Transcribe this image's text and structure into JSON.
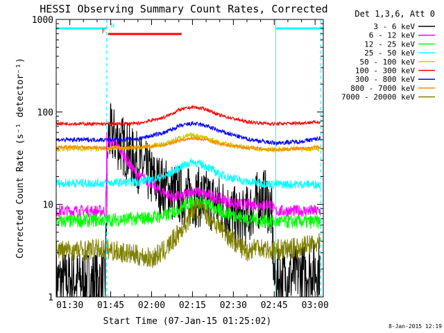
{
  "chart_data": {
    "type": "line",
    "title": "HESSI Observing Summary Count Rates, Corrected",
    "xlabel": "Start Time (07-Jan-15 01:25:02)",
    "ylabel": "Corrected Count Rate (s⁻¹ detector⁻¹)",
    "timestamp": "8-Jan-2015 12:19",
    "x_unit": "minutes after 01:25",
    "xlim": [
      0,
      98
    ],
    "ylim": [
      1,
      1000
    ],
    "y_scale": "log",
    "x_ticks": [
      {
        "x": 5,
        "label": "01:30"
      },
      {
        "x": 20,
        "label": "01:45"
      },
      {
        "x": 35,
        "label": "02:00"
      },
      {
        "x": 50,
        "label": "02:15"
      },
      {
        "x": 65,
        "label": "02:30"
      },
      {
        "x": 80,
        "label": "02:45"
      },
      {
        "x": 95,
        "label": "03:00"
      }
    ],
    "y_ticks": [
      {
        "y": 1,
        "label": "1"
      },
      {
        "y": 10,
        "label": "10"
      },
      {
        "y": 100,
        "label": "100"
      },
      {
        "y": 1000,
        "label": "1000"
      }
    ],
    "legend_title": "Det 1,3,6, Att 0",
    "legend_position": "outside-right",
    "flags": [
      {
        "label": "N",
        "color": "#00ffff",
        "segments": [
          [
            0,
            18.5
          ],
          [
            80.5,
            98
          ]
        ]
      },
      {
        "label": "F",
        "color": "#ff0000",
        "segments": [
          [
            19,
            46
          ]
        ]
      }
    ],
    "night_boundaries": [
      {
        "x": 18.5,
        "style": "dashed"
      },
      {
        "x": 18.5,
        "style": "solid-magenta"
      },
      {
        "x": 80.5,
        "style": "solid"
      },
      {
        "x": 97,
        "style": "dashed"
      }
    ],
    "series": [
      {
        "name": "3 - 6 keV",
        "color": "#000000",
        "noise": 0.35,
        "x": [
          0,
          10,
          18,
          19,
          20,
          24,
          28,
          32,
          36,
          40,
          44,
          48,
          52,
          56,
          60,
          64,
          68,
          72,
          74,
          76,
          78,
          79,
          80,
          90,
          97
        ],
        "y": [
          1.5,
          1.5,
          1.5,
          50,
          58,
          45,
          32,
          25,
          18,
          15,
          13,
          12,
          12,
          11,
          10,
          8,
          6.5,
          9,
          11,
          12,
          10,
          8,
          1.5,
          1.8,
          2
        ]
      },
      {
        "name": "6 - 12 keV",
        "color": "#ff00ff",
        "noise": 0.07,
        "x": [
          0,
          18,
          19,
          22,
          26,
          30,
          34,
          38,
          42,
          46,
          50,
          54,
          58,
          62,
          66,
          70,
          74,
          78,
          79,
          80,
          90,
          97
        ],
        "y": [
          8.5,
          8.5,
          48,
          45,
          30,
          20,
          18,
          14,
          12.5,
          12,
          14,
          13,
          12,
          11,
          10,
          10,
          10,
          10,
          10,
          8.5,
          8.5,
          8.5
        ]
      },
      {
        "name": "12 - 25 keV",
        "color": "#00ff00",
        "noise": 0.08,
        "x": [
          0,
          18,
          30,
          40,
          45,
          50,
          55,
          60,
          70,
          80,
          90,
          97
        ],
        "y": [
          6.5,
          6.8,
          7,
          7.5,
          9,
          11,
          10,
          8.5,
          7,
          6.5,
          6.5,
          6.5
        ]
      },
      {
        "name": "25 - 50 keV",
        "color": "#00ffff",
        "noise": 0.05,
        "x": [
          0,
          18,
          30,
          40,
          45,
          50,
          55,
          60,
          70,
          80,
          90,
          97
        ],
        "y": [
          17,
          17,
          17.5,
          20,
          25,
          29,
          26,
          21,
          17.5,
          16.5,
          16.5,
          16.5
        ]
      },
      {
        "name": "50 - 100 keV",
        "color": "#cccc00",
        "noise": 0.03,
        "x": [
          0,
          18,
          30,
          40,
          45,
          50,
          55,
          60,
          70,
          80,
          90,
          97
        ],
        "y": [
          40,
          40,
          41,
          45,
          52,
          56,
          53,
          46,
          41,
          39,
          40,
          40
        ]
      },
      {
        "name": "100 - 300 keV",
        "color": "#ff0000",
        "noise": 0.02,
        "x": [
          0,
          18,
          30,
          40,
          45,
          50,
          55,
          60,
          70,
          80,
          90,
          97
        ],
        "y": [
          75,
          74,
          75,
          88,
          105,
          113,
          107,
          92,
          78,
          74,
          76,
          78
        ]
      },
      {
        "name": "300 - 800 keV",
        "color": "#0000ff",
        "noise": 0.025,
        "x": [
          0,
          18,
          30,
          40,
          45,
          50,
          55,
          60,
          70,
          80,
          90,
          97
        ],
        "y": [
          50,
          50,
          51,
          60,
          70,
          75,
          71,
          62,
          51,
          46,
          48,
          52
        ]
      },
      {
        "name": "800 - 7000 keV",
        "color": "#ff8800",
        "noise": 0.02,
        "x": [
          0,
          18,
          30,
          40,
          45,
          50,
          55,
          60,
          70,
          80,
          90,
          97
        ],
        "y": [
          42,
          41,
          41,
          44,
          49,
          52,
          50,
          45,
          41,
          39,
          40,
          42
        ]
      },
      {
        "name": "7000 - 20000 keV",
        "color": "#808000",
        "noise": 0.12,
        "x": [
          0,
          10,
          18,
          25,
          30,
          35,
          40,
          44,
          48,
          50,
          52,
          55,
          58,
          62,
          66,
          70,
          74,
          78,
          80,
          86,
          92,
          97
        ],
        "y": [
          3.2,
          3.2,
          3.3,
          3,
          2.8,
          2.6,
          3.2,
          4.5,
          6.5,
          8.5,
          9,
          8,
          6.5,
          5,
          3.8,
          3.1,
          3.6,
          3.2,
          3.2,
          3.3,
          3.6,
          3.8
        ]
      }
    ]
  }
}
